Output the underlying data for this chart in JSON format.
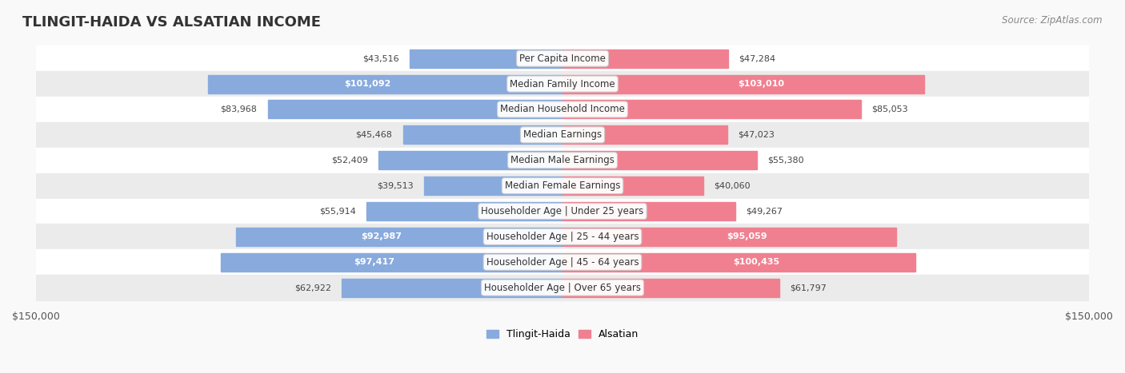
{
  "title": "TLINGIT-HAIDA VS ALSATIAN INCOME",
  "source": "Source: ZipAtlas.com",
  "categories": [
    "Per Capita Income",
    "Median Family Income",
    "Median Household Income",
    "Median Earnings",
    "Median Male Earnings",
    "Median Female Earnings",
    "Householder Age | Under 25 years",
    "Householder Age | 25 - 44 years",
    "Householder Age | 45 - 64 years",
    "Householder Age | Over 65 years"
  ],
  "tlingit_values": [
    43516,
    101092,
    83968,
    45468,
    52409,
    39513,
    55914,
    92987,
    97417,
    62922
  ],
  "alsatian_values": [
    47284,
    103010,
    85053,
    47023,
    55380,
    40060,
    49267,
    95059,
    100435,
    61797
  ],
  "tlingit_labels": [
    "$43,516",
    "$101,092",
    "$83,968",
    "$45,468",
    "$52,409",
    "$39,513",
    "$55,914",
    "$92,987",
    "$97,417",
    "$62,922"
  ],
  "alsatian_labels": [
    "$47,284",
    "$103,010",
    "$85,053",
    "$47,023",
    "$55,380",
    "$40,060",
    "$49,267",
    "$95,059",
    "$100,435",
    "$61,797"
  ],
  "tlingit_color": "#88AADD",
  "alsatian_color": "#F08090",
  "tlingit_color_dark": "#6688CC",
  "alsatian_color_dark": "#E06070",
  "tlingit_label_inside": [
    false,
    true,
    false,
    false,
    false,
    false,
    false,
    true,
    true,
    false
  ],
  "alsatian_label_inside": [
    false,
    true,
    false,
    false,
    false,
    false,
    false,
    true,
    true,
    false
  ],
  "x_max": 150000,
  "legend_tlingit": "Tlingit-Haida",
  "legend_alsatian": "Alsatian",
  "bg_color": "#f5f5f5",
  "row_bg_even": "#ffffff",
  "row_bg_odd": "#eeeeee",
  "title_fontsize": 14,
  "label_fontsize": 9,
  "category_fontsize": 9
}
